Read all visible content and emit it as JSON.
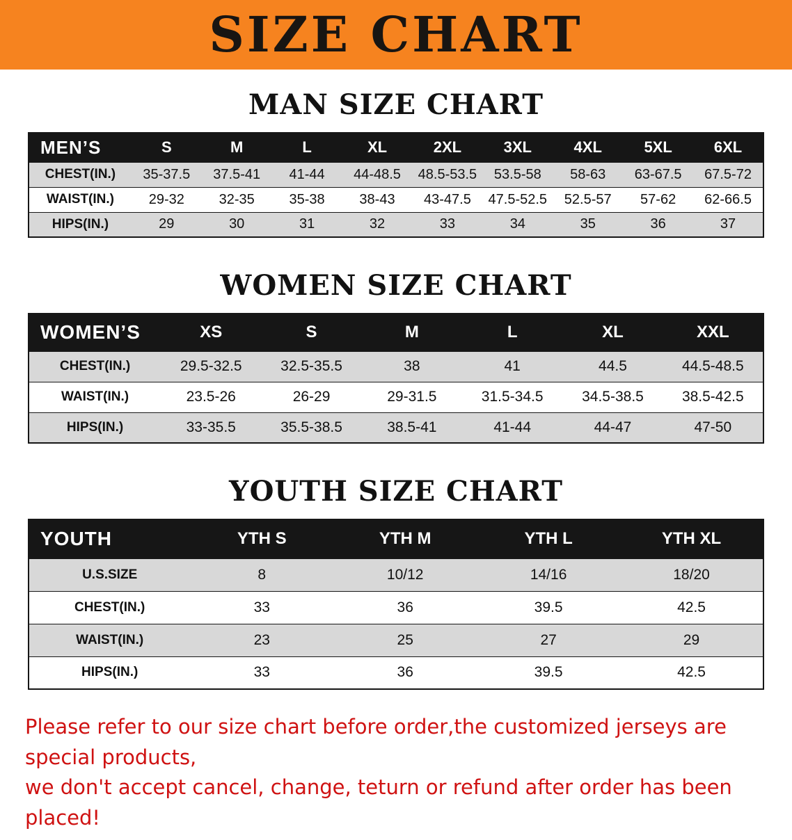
{
  "banner": {
    "title": "SIZE CHART"
  },
  "colors": {
    "banner_bg": "#f6831f",
    "header_bg": "#161616",
    "row_shade": "#d8d8d8",
    "note_color": "#cf1212"
  },
  "chart_data": [
    {
      "type": "table",
      "title": "MAN SIZE CHART",
      "header": [
        "MEN’S",
        "S",
        "M",
        "L",
        "XL",
        "2XL",
        "3XL",
        "4XL",
        "5XL",
        "6XL"
      ],
      "rows": [
        [
          "CHEST(IN.)",
          "35-37.5",
          "37.5-41",
          "41-44",
          "44-48.5",
          "48.5-53.5",
          "53.5-58",
          "58-63",
          "63-67.5",
          "67.5-72"
        ],
        [
          "WAIST(IN.)",
          "29-32",
          "32-35",
          "35-38",
          "38-43",
          "43-47.5",
          "47.5-52.5",
          "52.5-57",
          "57-62",
          "62-66.5"
        ],
        [
          "HIPS(IN.)",
          "29",
          "30",
          "31",
          "32",
          "33",
          "34",
          "35",
          "36",
          "37"
        ]
      ]
    },
    {
      "type": "table",
      "title": "WOMEN SIZE CHART",
      "header": [
        "WOMEN’S",
        "XS",
        "S",
        "M",
        "L",
        "XL",
        "XXL"
      ],
      "rows": [
        [
          "CHEST(IN.)",
          "29.5-32.5",
          "32.5-35.5",
          "38",
          "41",
          "44.5",
          "44.5-48.5"
        ],
        [
          "WAIST(IN.)",
          "23.5-26",
          "26-29",
          "29-31.5",
          "31.5-34.5",
          "34.5-38.5",
          "38.5-42.5"
        ],
        [
          "HIPS(IN.)",
          "33-35.5",
          "35.5-38.5",
          "38.5-41",
          "41-44",
          "44-47",
          "47-50"
        ]
      ]
    },
    {
      "type": "table",
      "title": "YOUTH SIZE CHART",
      "header": [
        "YOUTH",
        "YTH S",
        "YTH M",
        "YTH L",
        "YTH XL"
      ],
      "rows": [
        [
          "U.S.SIZE",
          "8",
          "10/12",
          "14/16",
          "18/20"
        ],
        [
          "CHEST(IN.)",
          "33",
          "36",
          "39.5",
          "42.5"
        ],
        [
          "WAIST(IN.)",
          "23",
          "25",
          "27",
          "29"
        ],
        [
          "HIPS(IN.)",
          "33",
          "36",
          "39.5",
          "42.5"
        ]
      ]
    }
  ],
  "note": {
    "line1": "Please refer to our size chart before order,the customized jerseys are special products,",
    "line2": "we don't accept cancel, change, teturn or refund after order has been placed!"
  }
}
